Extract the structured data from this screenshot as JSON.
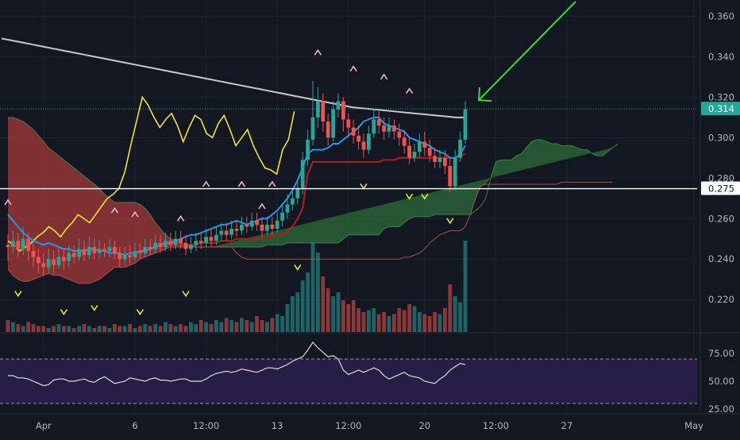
{
  "colors": {
    "background": "#131722",
    "grid": "#1f2330",
    "axis_text": "#b2b5be",
    "bull": "#26a69a",
    "bear": "#ef5350",
    "current_price_bg": "#26a69a",
    "horizontal_line": "#ffffff",
    "yellow_line": "#f2e236",
    "blue_line": "#2196f3",
    "red_line": "#b71c1c",
    "grey_ma": "#c8c8c8",
    "arrow": "#33dd33",
    "rsi_band": "#2a1e4a",
    "rsi_line": "#e8dcc0",
    "cloud_bear": "#a63a3a",
    "cloud_bull": "#2e6b3a",
    "marker_up": "#f4b3cc",
    "marker_down": "#f2e236"
  },
  "chart_data": {
    "type": "candlestick",
    "price_axis": {
      "ticks": [
        "0.360",
        "0.340",
        "0.320",
        "0.300",
        "0.280",
        "0.260",
        "0.240",
        "0.220"
      ],
      "ylim": [
        0.204,
        0.368
      ]
    },
    "current_price_label": "0.314",
    "current_price": 0.3142,
    "horizontal_line_label": "0.275",
    "horizontal_line_price": 0.2748,
    "time_axis": {
      "labels": [
        {
          "text": "Apr",
          "i": 7
        },
        {
          "text": "6",
          "i": 25
        },
        {
          "text": "12:00",
          "i": 39
        },
        {
          "text": "13",
          "i": 53
        },
        {
          "text": "12:00",
          "i": 67
        },
        {
          "text": "20",
          "i": 82
        },
        {
          "text": "12:00",
          "i": 96
        },
        {
          "text": "27",
          "i": 110
        },
        {
          "text": "May",
          "i": 135
        }
      ]
    },
    "rsi": {
      "ticks": [
        "75.00",
        "50.00",
        "25.00"
      ],
      "upper": 70,
      "lower": 30,
      "ylim": [
        25,
        90
      ],
      "values": [
        55,
        55,
        53,
        53,
        52,
        50,
        48,
        46,
        47,
        51,
        52,
        52,
        50,
        50,
        51,
        52,
        50,
        49,
        52,
        54,
        51,
        48,
        49,
        50,
        53,
        52,
        51,
        50,
        52,
        53,
        51,
        51,
        50,
        51,
        52,
        52,
        50,
        50,
        50,
        52,
        55,
        57,
        58,
        59,
        58,
        59,
        61,
        60,
        59,
        58,
        60,
        62,
        62,
        61,
        63,
        65,
        68,
        70,
        72,
        78,
        85,
        80,
        76,
        72,
        73,
        70,
        60,
        56,
        58,
        60,
        58,
        60,
        62,
        60,
        55,
        52,
        54,
        56,
        58,
        55,
        54,
        53,
        50,
        49,
        48,
        52,
        55,
        60,
        63,
        66,
        65
      ]
    },
    "candles": [
      [
        0.247,
        0.246,
        0.252,
        0.239
      ],
      [
        0.246,
        0.249,
        0.254,
        0.243
      ],
      [
        0.249,
        0.245,
        0.253,
        0.241
      ],
      [
        0.245,
        0.25,
        0.256,
        0.242
      ],
      [
        0.25,
        0.244,
        0.253,
        0.239
      ],
      [
        0.244,
        0.241,
        0.248,
        0.236
      ],
      [
        0.241,
        0.238,
        0.245,
        0.233
      ],
      [
        0.238,
        0.236,
        0.243,
        0.232
      ],
      [
        0.236,
        0.24,
        0.245,
        0.233
      ],
      [
        0.24,
        0.237,
        0.244,
        0.233
      ],
      [
        0.237,
        0.241,
        0.246,
        0.235
      ],
      [
        0.241,
        0.239,
        0.245,
        0.235
      ],
      [
        0.239,
        0.243,
        0.247,
        0.236
      ],
      [
        0.243,
        0.241,
        0.247,
        0.238
      ],
      [
        0.241,
        0.245,
        0.25,
        0.239
      ],
      [
        0.245,
        0.242,
        0.249,
        0.239
      ],
      [
        0.242,
        0.246,
        0.251,
        0.24
      ],
      [
        0.246,
        0.243,
        0.25,
        0.24
      ],
      [
        0.243,
        0.245,
        0.249,
        0.24
      ],
      [
        0.245,
        0.244,
        0.248,
        0.241
      ],
      [
        0.244,
        0.246,
        0.25,
        0.241
      ],
      [
        0.246,
        0.243,
        0.249,
        0.24
      ],
      [
        0.243,
        0.24,
        0.246,
        0.236
      ],
      [
        0.24,
        0.242,
        0.246,
        0.237
      ],
      [
        0.242,
        0.241,
        0.247,
        0.238
      ],
      [
        0.241,
        0.244,
        0.248,
        0.239
      ],
      [
        0.244,
        0.243,
        0.248,
        0.24
      ],
      [
        0.243,
        0.246,
        0.25,
        0.241
      ],
      [
        0.246,
        0.245,
        0.25,
        0.242
      ],
      [
        0.245,
        0.248,
        0.252,
        0.243
      ],
      [
        0.248,
        0.246,
        0.252,
        0.243
      ],
      [
        0.246,
        0.249,
        0.253,
        0.244
      ],
      [
        0.249,
        0.247,
        0.253,
        0.244
      ],
      [
        0.247,
        0.25,
        0.254,
        0.245
      ],
      [
        0.25,
        0.248,
        0.254,
        0.245
      ],
      [
        0.248,
        0.245,
        0.252,
        0.242
      ],
      [
        0.245,
        0.247,
        0.251,
        0.243
      ],
      [
        0.247,
        0.249,
        0.253,
        0.244
      ],
      [
        0.249,
        0.248,
        0.253,
        0.245
      ],
      [
        0.248,
        0.251,
        0.255,
        0.246
      ],
      [
        0.251,
        0.249,
        0.255,
        0.246
      ],
      [
        0.249,
        0.252,
        0.256,
        0.247
      ],
      [
        0.252,
        0.254,
        0.258,
        0.249
      ],
      [
        0.254,
        0.252,
        0.258,
        0.249
      ],
      [
        0.252,
        0.255,
        0.259,
        0.25
      ],
      [
        0.255,
        0.254,
        0.259,
        0.251
      ],
      [
        0.254,
        0.257,
        0.261,
        0.252
      ],
      [
        0.257,
        0.256,
        0.261,
        0.253
      ],
      [
        0.256,
        0.259,
        0.263,
        0.254
      ],
      [
        0.259,
        0.257,
        0.263,
        0.254
      ],
      [
        0.257,
        0.254,
        0.261,
        0.251
      ],
      [
        0.254,
        0.257,
        0.261,
        0.252
      ],
      [
        0.257,
        0.255,
        0.261,
        0.252
      ],
      [
        0.255,
        0.259,
        0.263,
        0.253
      ],
      [
        0.259,
        0.263,
        0.267,
        0.256
      ],
      [
        0.263,
        0.267,
        0.272,
        0.26
      ],
      [
        0.267,
        0.27,
        0.275,
        0.264
      ],
      [
        0.27,
        0.275,
        0.279,
        0.267
      ],
      [
        0.275,
        0.289,
        0.293,
        0.272
      ],
      [
        0.289,
        0.299,
        0.304,
        0.286
      ],
      [
        0.299,
        0.31,
        0.328,
        0.296
      ],
      [
        0.31,
        0.318,
        0.325,
        0.305
      ],
      [
        0.318,
        0.308,
        0.322,
        0.303
      ],
      [
        0.308,
        0.3,
        0.312,
        0.296
      ],
      [
        0.3,
        0.314,
        0.318,
        0.298
      ],
      [
        0.314,
        0.318,
        0.322,
        0.31
      ],
      [
        0.318,
        0.309,
        0.32,
        0.303
      ],
      [
        0.309,
        0.305,
        0.312,
        0.3
      ],
      [
        0.305,
        0.301,
        0.309,
        0.297
      ],
      [
        0.301,
        0.298,
        0.306,
        0.294
      ],
      [
        0.298,
        0.294,
        0.302,
        0.29
      ],
      [
        0.294,
        0.302,
        0.306,
        0.292
      ],
      [
        0.302,
        0.309,
        0.314,
        0.3
      ],
      [
        0.309,
        0.306,
        0.313,
        0.302
      ],
      [
        0.306,
        0.303,
        0.31,
        0.299
      ],
      [
        0.303,
        0.306,
        0.31,
        0.3
      ],
      [
        0.306,
        0.303,
        0.309,
        0.299
      ],
      [
        0.303,
        0.3,
        0.307,
        0.296
      ],
      [
        0.3,
        0.296,
        0.304,
        0.292
      ],
      [
        0.296,
        0.29,
        0.3,
        0.287
      ],
      [
        0.29,
        0.293,
        0.297,
        0.288
      ],
      [
        0.293,
        0.298,
        0.302,
        0.29
      ],
      [
        0.298,
        0.295,
        0.303,
        0.291
      ],
      [
        0.295,
        0.291,
        0.299,
        0.288
      ],
      [
        0.291,
        0.288,
        0.295,
        0.285
      ],
      [
        0.288,
        0.29,
        0.294,
        0.285
      ],
      [
        0.29,
        0.286,
        0.294,
        0.282
      ],
      [
        0.286,
        0.276,
        0.29,
        0.273
      ],
      [
        0.276,
        0.29,
        0.294,
        0.274
      ],
      [
        0.29,
        0.299,
        0.303,
        0.288
      ],
      [
        0.299,
        0.314,
        0.318,
        0.297
      ]
    ],
    "volume": [
      6,
      5,
      4,
      3,
      5,
      4,
      3,
      3,
      2,
      3,
      4,
      3,
      3,
      2,
      3,
      4,
      3,
      2,
      3,
      3,
      2,
      4,
      3,
      3,
      4,
      2,
      3,
      4,
      3,
      4,
      3,
      5,
      4,
      3,
      4,
      3,
      5,
      4,
      6,
      5,
      4,
      6,
      5,
      7,
      6,
      5,
      7,
      6,
      5,
      8,
      6,
      5,
      7,
      9,
      8,
      14,
      18,
      20,
      26,
      30,
      45,
      40,
      28,
      22,
      18,
      20,
      16,
      14,
      16,
      12,
      10,
      11,
      12,
      9,
      10,
      8,
      9,
      12,
      11,
      14,
      13,
      10,
      9,
      8,
      10,
      9,
      12,
      24,
      18,
      15,
      46
    ],
    "yellow_line": [
      0.249,
      0.247,
      0.244,
      0.246,
      0.248,
      0.251,
      0.253,
      0.256,
      0.254,
      0.251,
      0.255,
      0.258,
      0.262,
      0.26,
      0.258,
      0.262,
      0.266,
      0.27,
      0.272,
      0.275,
      0.283,
      0.296,
      0.308,
      0.32,
      0.316,
      0.31,
      0.305,
      0.309,
      0.312,
      0.306,
      0.298,
      0.305,
      0.311,
      0.309,
      0.302,
      0.3,
      0.307,
      0.311,
      0.304,
      0.296,
      0.3,
      0.304,
      0.296,
      0.29,
      0.285,
      0.284,
      0.282,
      0.294,
      0.299,
      0.313
    ],
    "blue_line": [
      0.262,
      0.259,
      0.256,
      0.253,
      0.251,
      0.249,
      0.248,
      0.247,
      0.248,
      0.247,
      0.246,
      0.245,
      0.245,
      0.244,
      0.244,
      0.244,
      0.245,
      0.245,
      0.244,
      0.244,
      0.243,
      0.243,
      0.243,
      0.242,
      0.243,
      0.243,
      0.244,
      0.244,
      0.245,
      0.246,
      0.247,
      0.248,
      0.248,
      0.249,
      0.25,
      0.251,
      0.252,
      0.252,
      0.253,
      0.254,
      0.255,
      0.256,
      0.257,
      0.257,
      0.258,
      0.259,
      0.258,
      0.257,
      0.258,
      0.259,
      0.26,
      0.26,
      0.262,
      0.264,
      0.267,
      0.27,
      0.274,
      0.279,
      0.285,
      0.292,
      0.294,
      0.294,
      0.294,
      0.295,
      0.297,
      0.297,
      0.299,
      0.301,
      0.303,
      0.305,
      0.308,
      0.309,
      0.31,
      0.31,
      0.307,
      0.306,
      0.305,
      0.304,
      0.303,
      0.3,
      0.299,
      0.298,
      0.297,
      0.296,
      0.294,
      0.293,
      0.292,
      0.29,
      0.29,
      0.292,
      0.296
    ],
    "red_line": [
      0.246,
      0.246,
      0.246,
      0.245,
      0.245,
      0.244,
      0.244,
      0.244,
      0.244,
      0.244,
      0.244,
      0.244,
      0.244,
      0.244,
      0.244,
      0.244,
      0.245,
      0.245,
      0.245,
      0.245,
      0.245,
      0.245,
      0.245,
      0.245,
      0.245,
      0.245,
      0.245,
      0.246,
      0.246,
      0.246,
      0.246,
      0.246,
      0.246,
      0.246,
      0.247,
      0.247,
      0.247,
      0.247,
      0.248,
      0.248,
      0.248,
      0.248,
      0.249,
      0.249,
      0.249,
      0.25,
      0.25,
      0.25,
      0.25,
      0.25,
      0.25,
      0.251,
      0.251,
      0.252,
      0.252,
      0.254,
      0.256,
      0.26,
      0.265,
      0.282,
      0.288,
      0.288,
      0.288,
      0.288,
      0.288,
      0.288,
      0.288,
      0.288,
      0.288,
      0.288,
      0.288,
      0.288,
      0.288,
      0.288,
      0.289,
      0.289,
      0.289,
      0.29,
      0.29,
      0.29,
      0.29,
      0.29,
      0.29,
      0.29,
      0.29,
      0.29,
      0.29,
      0.29,
      0.29,
      0.291,
      0.292
    ],
    "grey_ma": [
      0.349,
      0.348,
      0.347,
      0.346,
      0.345,
      0.344,
      0.343,
      0.342,
      0.341,
      0.34,
      0.339,
      0.338,
      0.337,
      0.336,
      0.335,
      0.334,
      0.333,
      0.332,
      0.331,
      0.33,
      0.329,
      0.328,
      0.327,
      0.326,
      0.325,
      0.324,
      0.323,
      0.322,
      0.321,
      0.32,
      0.319,
      0.318,
      0.317,
      0.316,
      0.315,
      0.3145,
      0.314,
      0.3135,
      0.313,
      0.3125,
      0.312,
      0.3115,
      0.311,
      0.3105,
      0.31,
      0.31
    ],
    "cloud_a": [
      0.31,
      0.31,
      0.309,
      0.308,
      0.306,
      0.304,
      0.301,
      0.298,
      0.295,
      0.293,
      0.291,
      0.289,
      0.287,
      0.285,
      0.283,
      0.281,
      0.279,
      0.277,
      0.275,
      0.272,
      0.27,
      0.268,
      0.268,
      0.268,
      0.268,
      0.268,
      0.267,
      0.265,
      0.262,
      0.258,
      0.255,
      0.252,
      0.25,
      0.249,
      0.248,
      0.247,
      0.247,
      0.246,
      0.246,
      0.246,
      0.246,
      0.246,
      0.246,
      0.246,
      0.246,
      0.246,
      0.246,
      0.246,
      0.246,
      0.246,
      0.246,
      0.247,
      0.247,
      0.247,
      0.247,
      0.248,
      0.248,
      0.248,
      0.248,
      0.248,
      0.248,
      0.248,
      0.248,
      0.248,
      0.248,
      0.248,
      0.25,
      0.252,
      0.252,
      0.252,
      0.252,
      0.252,
      0.252,
      0.252,
      0.255,
      0.256,
      0.256,
      0.256,
      0.258,
      0.26,
      0.261,
      0.261,
      0.261,
      0.261,
      0.262,
      0.262,
      0.262,
      0.262,
      0.262,
      0.262,
      0.262,
      0.262,
      0.264,
      0.266,
      0.27,
      0.28,
      0.288,
      0.289,
      0.289,
      0.289,
      0.291,
      0.292,
      0.295,
      0.298,
      0.299,
      0.299,
      0.298,
      0.297,
      0.297,
      0.296,
      0.296,
      0.296,
      0.295,
      0.294,
      0.294,
      0.292,
      0.291,
      0.291,
      0.293,
      0.295,
      0.297
    ],
    "cloud_b": [
      0.235,
      0.232,
      0.23,
      0.229,
      0.229,
      0.23,
      0.231,
      0.232,
      0.233,
      0.232,
      0.232,
      0.231,
      0.23,
      0.229,
      0.228,
      0.228,
      0.228,
      0.229,
      0.23,
      0.232,
      0.234,
      0.236,
      0.236,
      0.236,
      0.237,
      0.238,
      0.24,
      0.241,
      0.242,
      0.243,
      0.244,
      0.245,
      0.246,
      0.246,
      0.246,
      0.246,
      0.246,
      0.246,
      0.246,
      0.246,
      0.246,
      0.246,
      0.246,
      0.246,
      0.246,
      0.243,
      0.241,
      0.24,
      0.24,
      0.24,
      0.24,
      0.24,
      0.24,
      0.24,
      0.24,
      0.24,
      0.24,
      0.24,
      0.24,
      0.24,
      0.24,
      0.24,
      0.24,
      0.24,
      0.24,
      0.24,
      0.24,
      0.24,
      0.24,
      0.24,
      0.24,
      0.24,
      0.24,
      0.24,
      0.24,
      0.24,
      0.24,
      0.24,
      0.241,
      0.241,
      0.242,
      0.243,
      0.245,
      0.248,
      0.25,
      0.252,
      0.253,
      0.254,
      0.254,
      0.254,
      0.256,
      0.262,
      0.27,
      0.276,
      0.277,
      0.277,
      0.277,
      0.277,
      0.277,
      0.277,
      0.277,
      0.277,
      0.277,
      0.277,
      0.277,
      0.277,
      0.277,
      0.277,
      0.277,
      0.278,
      0.278,
      0.278,
      0.278,
      0.278,
      0.278,
      0.278,
      0.278,
      0.278,
      0.278,
      0.278
    ],
    "markers_up": [
      [
        0,
        0.268
      ],
      [
        25,
        0.262
      ],
      [
        34,
        0.26
      ],
      [
        50,
        0.266
      ],
      [
        61,
        0.342
      ],
      [
        68,
        0.334
      ],
      [
        74,
        0.33
      ],
      [
        79,
        0.323
      ],
      [
        39,
        0.277
      ],
      [
        46,
        0.277
      ],
      [
        52,
        0.277
      ],
      [
        21,
        0.264
      ]
    ],
    "markers_down": [
      [
        2,
        0.223
      ],
      [
        11,
        0.214
      ],
      [
        17,
        0.216
      ],
      [
        26,
        0.214
      ],
      [
        35,
        0.223
      ],
      [
        57,
        0.236
      ],
      [
        70,
        0.276
      ],
      [
        79,
        0.271
      ],
      [
        82,
        0.271
      ],
      [
        87,
        0.259
      ]
    ]
  }
}
